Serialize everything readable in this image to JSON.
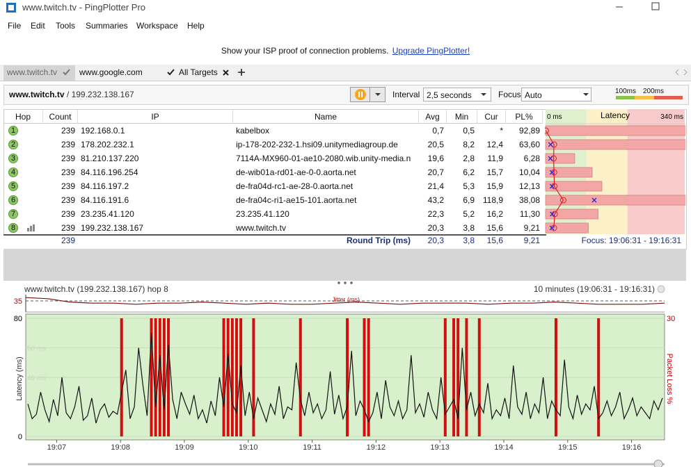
{
  "window": {
    "title": "www.twitch.tv - PingPlotter Pro"
  },
  "menu": [
    "File",
    "Edit",
    "Tools",
    "Summaries",
    "Workspace",
    "Help"
  ],
  "banner": {
    "text": "Show your ISP proof of connection problems.",
    "link": "Upgrade PingPlotter!"
  },
  "tabs": [
    "www.twitch.tv",
    "www.google.com",
    "All Targets"
  ],
  "toolbar": {
    "target": "www.twitch.tv",
    "address": "/ 199.232.138.167",
    "interval_label": "Interval",
    "interval": "2,5 seconds",
    "focus_label": "Focus",
    "focus": "Auto",
    "latency_legend": [
      {
        "value": 100,
        "label": "100ms"
      },
      {
        "value": 200,
        "label": "200ms"
      }
    ]
  },
  "table": {
    "headers": [
      "Hop",
      "Count",
      "IP",
      "Name",
      "Avg",
      "Min",
      "Cur",
      "PL%"
    ],
    "latency_header": "Latency",
    "latency_xlim": [
      {
        "value": 0,
        "label": "0 ms"
      },
      {
        "value": 340,
        "label": "340 ms"
      }
    ],
    "rows": [
      [
        "1",
        "239",
        "192.168.0.1",
        "kabelbox",
        "0,7",
        "0,5",
        "*",
        "92,89"
      ],
      [
        "2",
        "239",
        "178.202.232.1",
        "ip-178-202-232-1.hsi09.unitymediagroup.de",
        "20,5",
        "8,2",
        "12,4",
        "63,60"
      ],
      [
        "3",
        "239",
        "81.210.137.220",
        "7114A-MX960-01-ae10-2080.wib.unity-media.n",
        "19,6",
        "2,8",
        "11,9",
        "6,28"
      ],
      [
        "4",
        "239",
        "84.116.196.254",
        "de-wib01a-rd01-ae-0-0.aorta.net",
        "20,7",
        "6,2",
        "15,7",
        "10,04"
      ],
      [
        "5",
        "239",
        "84.116.197.2",
        "de-fra04d-rc1-ae-28-0.aorta.net",
        "21,4",
        "5,3",
        "15,9",
        "12,13"
      ],
      [
        "6",
        "239",
        "84.116.191.6",
        "de-fra04c-ri1-ae15-101.aorta.net",
        "43,2",
        "6,9",
        "118,9",
        "38,08"
      ],
      [
        "7",
        "239",
        "23.235.41.120",
        "23.235.41.120",
        "22,3",
        "5,2",
        "16,2",
        "11,30"
      ],
      [
        "8",
        "239",
        "199.232.138.167",
        "www.twitch.tv",
        "20,3",
        "3,8",
        "15,6",
        "9,21"
      ]
    ],
    "summary": {
      "count": "239",
      "label": "Round Trip (ms)",
      "avg": "20,3",
      "min": "3,8",
      "cur": "15,6",
      "pl": "9,21",
      "focus": "Focus: 19:06:31 - 19:16:31"
    }
  },
  "graph": {
    "title": "www.twitch.tv (199.232.138.167) hop 8",
    "range": "10 minutes (19:06:31 - 19:16:31)",
    "jitter_label": "Jitter (ms)",
    "jitter_ylim": [
      25,
      40
    ],
    "jitter_yticks": [
      35
    ],
    "jitter": [
      38,
      37,
      34,
      33,
      33,
      32,
      33,
      33,
      34,
      33,
      32,
      33,
      32,
      32,
      33,
      34,
      33,
      32,
      33,
      33,
      33,
      32,
      33,
      33,
      34,
      33,
      32,
      32,
      32,
      33
    ],
    "ylabel": "Latency (ms)",
    "y2label": "Packet Loss %",
    "ylim": [
      0,
      80
    ],
    "yticks": [
      0,
      {
        "value": 40,
        "label": "40 ms"
      },
      {
        "value": 60,
        "label": "60 ms"
      },
      80
    ],
    "y2lim": [
      0,
      30
    ],
    "y2ticks": [
      30
    ],
    "xlim": [
      "19:06:31",
      "19:16:31"
    ],
    "xticks": [
      "19:07",
      "19:08",
      "19:09",
      "19:10",
      "19:11",
      "19:12",
      "19:13",
      "19:14",
      "19:15",
      "19:16"
    ],
    "latency": [
      22,
      12,
      15,
      30,
      18,
      10,
      25,
      14,
      40,
      16,
      12,
      20,
      34,
      11,
      14,
      26,
      9,
      18,
      22,
      13,
      17,
      15,
      30,
      45,
      12,
      20,
      60,
      35,
      14,
      70,
      20,
      55,
      18,
      62,
      25,
      12,
      30,
      22,
      15,
      28,
      12,
      18,
      9,
      24,
      14,
      40,
      20,
      56,
      22,
      16,
      48,
      14,
      30,
      12,
      26,
      18,
      10,
      22,
      15,
      34,
      12,
      20,
      18,
      50,
      25,
      14,
      30,
      16,
      22,
      12,
      18,
      44,
      15,
      28,
      12,
      20,
      58,
      14,
      24,
      18,
      10,
      16,
      30,
      12,
      38,
      20,
      14,
      24,
      12,
      18,
      55,
      16,
      22,
      13,
      30,
      18,
      12,
      40,
      15,
      20,
      25,
      12,
      60,
      18,
      30,
      14,
      22,
      16,
      36,
      12,
      18,
      14,
      26,
      12,
      48,
      20,
      15,
      30,
      12,
      22,
      16,
      40,
      12,
      24,
      18,
      14,
      52,
      20,
      12,
      28,
      15,
      22,
      18,
      34,
      12,
      16,
      24,
      14,
      20,
      30,
      12,
      18,
      26,
      14,
      20,
      16,
      12,
      24,
      18,
      26
    ],
    "packet_loss": [
      0,
      0,
      0,
      0,
      0,
      0,
      0,
      0,
      0,
      0,
      0,
      0,
      0,
      0,
      0,
      0,
      0,
      0,
      0,
      0,
      0,
      0,
      100,
      0,
      0,
      0,
      0,
      0,
      0,
      100,
      100,
      100,
      100,
      100,
      0,
      0,
      0,
      0,
      0,
      0,
      0,
      0,
      0,
      0,
      0,
      0,
      100,
      100,
      100,
      100,
      100,
      0,
      0,
      100,
      0,
      0,
      0,
      0,
      0,
      0,
      0,
      0,
      0,
      0,
      100,
      0,
      0,
      0,
      0,
      0,
      0,
      0,
      0,
      0,
      0,
      100,
      0,
      0,
      0,
      100,
      100,
      0,
      0,
      0,
      0,
      0,
      0,
      0,
      0,
      0,
      0,
      0,
      0,
      0,
      0,
      0,
      0,
      0,
      100,
      0,
      100,
      100,
      0,
      100,
      0,
      0,
      100,
      0,
      0,
      0,
      0,
      0,
      0,
      0,
      0,
      0,
      0,
      0,
      0,
      0,
      0,
      0,
      0,
      0,
      100,
      0,
      0,
      0,
      0,
      0,
      0,
      0,
      0,
      0,
      100,
      0,
      0,
      0,
      0,
      0,
      0,
      0,
      0,
      0,
      0,
      0,
      0,
      0,
      0,
      0
    ]
  }
}
